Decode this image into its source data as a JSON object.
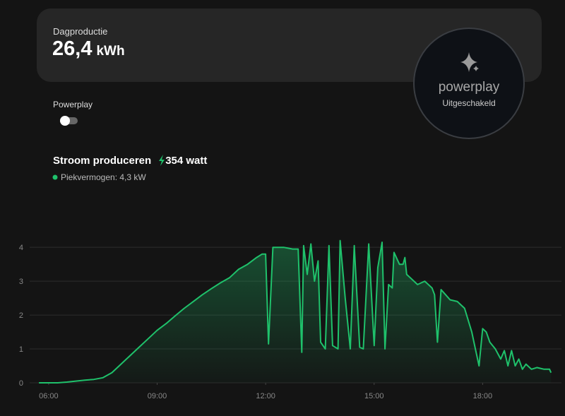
{
  "summary": {
    "label": "Dagproductie",
    "value": "26,4",
    "unit": "kWh"
  },
  "toggle": {
    "label": "Powerplay"
  },
  "badge": {
    "brand": "powerplay",
    "status": "Uitgeschakeld"
  },
  "production": {
    "title": "Stroom produceren",
    "value": "354 watt",
    "peak": "Piekvermogen: 4,3 kW"
  },
  "chart_data": {
    "type": "area",
    "color": "#1fc16b",
    "x": [
      5.73,
      6.0,
      6.25,
      6.5,
      6.75,
      7.0,
      7.25,
      7.5,
      7.75,
      8.0,
      8.25,
      8.5,
      8.75,
      9.0,
      9.25,
      9.5,
      9.75,
      10.0,
      10.25,
      10.5,
      10.75,
      11.0,
      11.25,
      11.5,
      11.75,
      11.9,
      12.0,
      12.08,
      12.2,
      12.5,
      12.75,
      12.9,
      13.0,
      13.05,
      13.15,
      13.25,
      13.35,
      13.45,
      13.52,
      13.65,
      13.75,
      13.85,
      14.0,
      14.06,
      14.2,
      14.34,
      14.45,
      14.6,
      14.7,
      14.85,
      15.0,
      15.1,
      15.22,
      15.3,
      15.4,
      15.5,
      15.55,
      15.7,
      15.8,
      15.85,
      15.9,
      16.0,
      16.2,
      16.4,
      16.6,
      16.67,
      16.75,
      16.85,
      17.1,
      17.3,
      17.5,
      17.7,
      17.8,
      17.9,
      18.0,
      18.1,
      18.2,
      18.35,
      18.5,
      18.6,
      18.7,
      18.8,
      18.9,
      19.0,
      19.1,
      19.2,
      19.35,
      19.5,
      19.7,
      19.85,
      19.89
    ],
    "values": [
      0,
      0,
      0,
      0.02,
      0.05,
      0.08,
      0.1,
      0.15,
      0.3,
      0.55,
      0.8,
      1.05,
      1.3,
      1.55,
      1.75,
      1.98,
      2.2,
      2.4,
      2.6,
      2.78,
      2.95,
      3.1,
      3.35,
      3.5,
      3.7,
      3.8,
      3.8,
      1.15,
      4.0,
      4.0,
      3.95,
      3.95,
      0.9,
      4.05,
      3.2,
      4.1,
      3.0,
      3.6,
      1.2,
      1.0,
      4.05,
      1.1,
      1.0,
      4.2,
      2.5,
      1.0,
      4.05,
      1.05,
      1.0,
      4.1,
      1.1,
      3.4,
      4.15,
      1.0,
      2.9,
      2.8,
      3.85,
      3.5,
      3.5,
      3.7,
      3.2,
      3.1,
      2.9,
      3.0,
      2.8,
      2.6,
      1.2,
      2.75,
      2.45,
      2.4,
      2.2,
      1.5,
      1.0,
      0.5,
      1.6,
      1.5,
      1.2,
      1.0,
      0.7,
      0.95,
      0.5,
      0.95,
      0.5,
      0.7,
      0.4,
      0.55,
      0.4,
      0.45,
      0.4,
      0.4,
      0.3
    ],
    "xlim": [
      5.24,
      20.18
    ],
    "ylim": [
      0,
      4.4
    ],
    "xticks": [
      {
        "value": 6,
        "label": "06:00"
      },
      {
        "value": 9,
        "label": "09:00"
      },
      {
        "value": 12,
        "label": "12:00"
      },
      {
        "value": 15,
        "label": "15:00"
      },
      {
        "value": 18,
        "label": "18:00"
      }
    ],
    "yticks": [
      0,
      1,
      2,
      3,
      4
    ],
    "grid": true
  }
}
